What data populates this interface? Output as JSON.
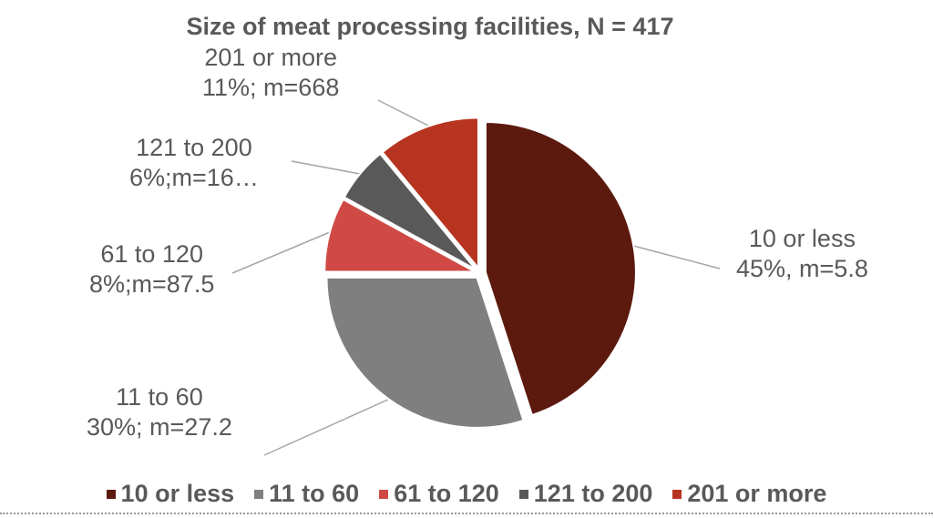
{
  "chart_data": {
    "type": "pie",
    "title": "Size of meat processing facilities, N = 417",
    "start_angle_deg": 0,
    "direction": "clockwise",
    "slices": [
      {
        "name": "10 or less",
        "value": 45,
        "label_line1": "10 or less",
        "label_line2": "45%, m=5.8",
        "color": "#5C1A0F"
      },
      {
        "name": "11 to 60",
        "value": 30,
        "label_line1": "11 to 60",
        "label_line2": "30%; m=27.2",
        "color": "#7F7F7F"
      },
      {
        "name": "61 to 120",
        "value": 8,
        "label_line1": "61 to 120",
        "label_line2": "8%;m=87.5",
        "color": "#D04A45"
      },
      {
        "name": "121 to 200",
        "value": 6,
        "label_line1": "121 to 200",
        "label_line2": "6%;m=16…",
        "color": "#595959"
      },
      {
        "name": "201 or more",
        "value": 11,
        "label_line1": "201 or more",
        "label_line2": "11%; m=668",
        "color": "#B73420"
      }
    ],
    "legend_position": "bottom"
  }
}
